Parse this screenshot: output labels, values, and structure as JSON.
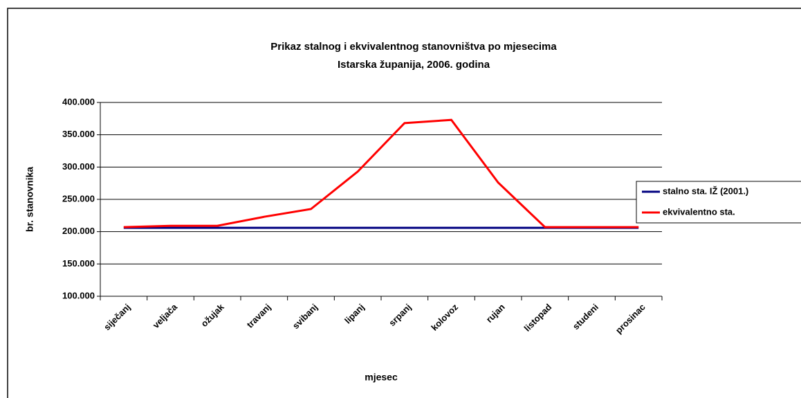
{
  "chart_data": {
    "type": "line",
    "title": "Prikaz stalnog i ekvivalentnog stanovništva po mjesecima",
    "subtitle": "Istarska županija, 2006. godina",
    "x_label": "mjesec",
    "y_label": "br. stanovnika",
    "categories": [
      "siječanj",
      "veljača",
      "ožujak",
      "travanj",
      "svibanj",
      "lipanj",
      "srpanj",
      "kolovoz",
      "rujan",
      "listopad",
      "studeni",
      "prosinac"
    ],
    "series": [
      {
        "name": "stalno sta. IŽ (2001.)",
        "color": "#000080",
        "values": [
          206000,
          206000,
          206000,
          206000,
          206000,
          206000,
          206000,
          206000,
          206000,
          206000,
          206000,
          206000
        ]
      },
      {
        "name": "ekvivalentno sta.",
        "color": "#ff0000",
        "values": [
          207000,
          209000,
          209000,
          223000,
          235000,
          293000,
          368000,
          373000,
          276000,
          207000,
          207000,
          207000
        ]
      }
    ],
    "ylim": [
      100000,
      400000
    ],
    "yticks": [
      {
        "value": 100000,
        "label": "100.000"
      },
      {
        "value": 150000,
        "label": "150.000"
      },
      {
        "value": 200000,
        "label": "200.000"
      },
      {
        "value": 250000,
        "label": "250.000"
      },
      {
        "value": 300000,
        "label": "300.000"
      },
      {
        "value": 350000,
        "label": "350.000"
      },
      {
        "value": 400000,
        "label": "400.000"
      }
    ],
    "grid": true,
    "legend": "right"
  }
}
